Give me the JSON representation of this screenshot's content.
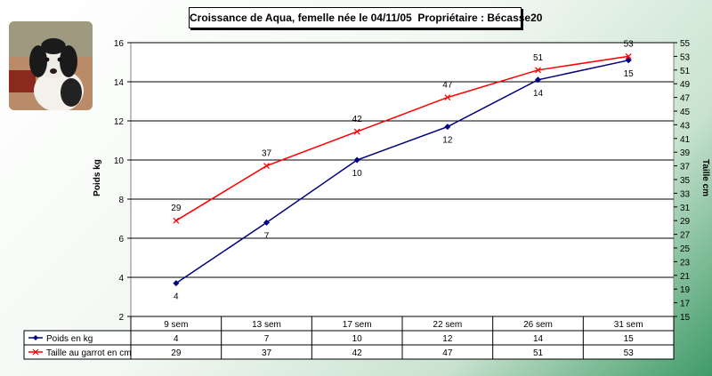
{
  "title": "Croissance de Aqua, femelle née le 04/11/05  Propriétaire : Bécasse20",
  "photo": {
    "name": "puppy-photo"
  },
  "chart_data": {
    "type": "line",
    "categories": [
      "9 sem",
      "13 sem",
      "17 sem",
      "22 sem",
      "26 sem",
      "31 sem"
    ],
    "series": [
      {
        "name": "Poids en kg",
        "axis": "left",
        "color": "#000080",
        "marker": "diamond",
        "values": [
          4,
          7,
          10,
          12,
          14,
          15
        ],
        "plotted": [
          3.7,
          6.8,
          10.0,
          11.7,
          14.1,
          15.1
        ]
      },
      {
        "name": "Taille au garrot en cm",
        "axis": "right",
        "color": "#ff0000",
        "marker": "x",
        "values": [
          29,
          37,
          42,
          47,
          51,
          53
        ],
        "plotted": [
          29,
          37,
          42,
          47,
          51,
          53
        ]
      }
    ],
    "ylabel_left": "Poids kg",
    "ylabel_right": "Taille cm",
    "ylim_left": [
      2,
      16
    ],
    "yticks_left": [
      2,
      4,
      6,
      8,
      10,
      12,
      14,
      16
    ],
    "ylim_right": [
      15,
      55
    ],
    "yticks_right": [
      15,
      17,
      19,
      21,
      23,
      25,
      27,
      29,
      31,
      33,
      35,
      37,
      39,
      41,
      43,
      45,
      47,
      49,
      51,
      53,
      55
    ],
    "grid": true,
    "data_table": true
  }
}
